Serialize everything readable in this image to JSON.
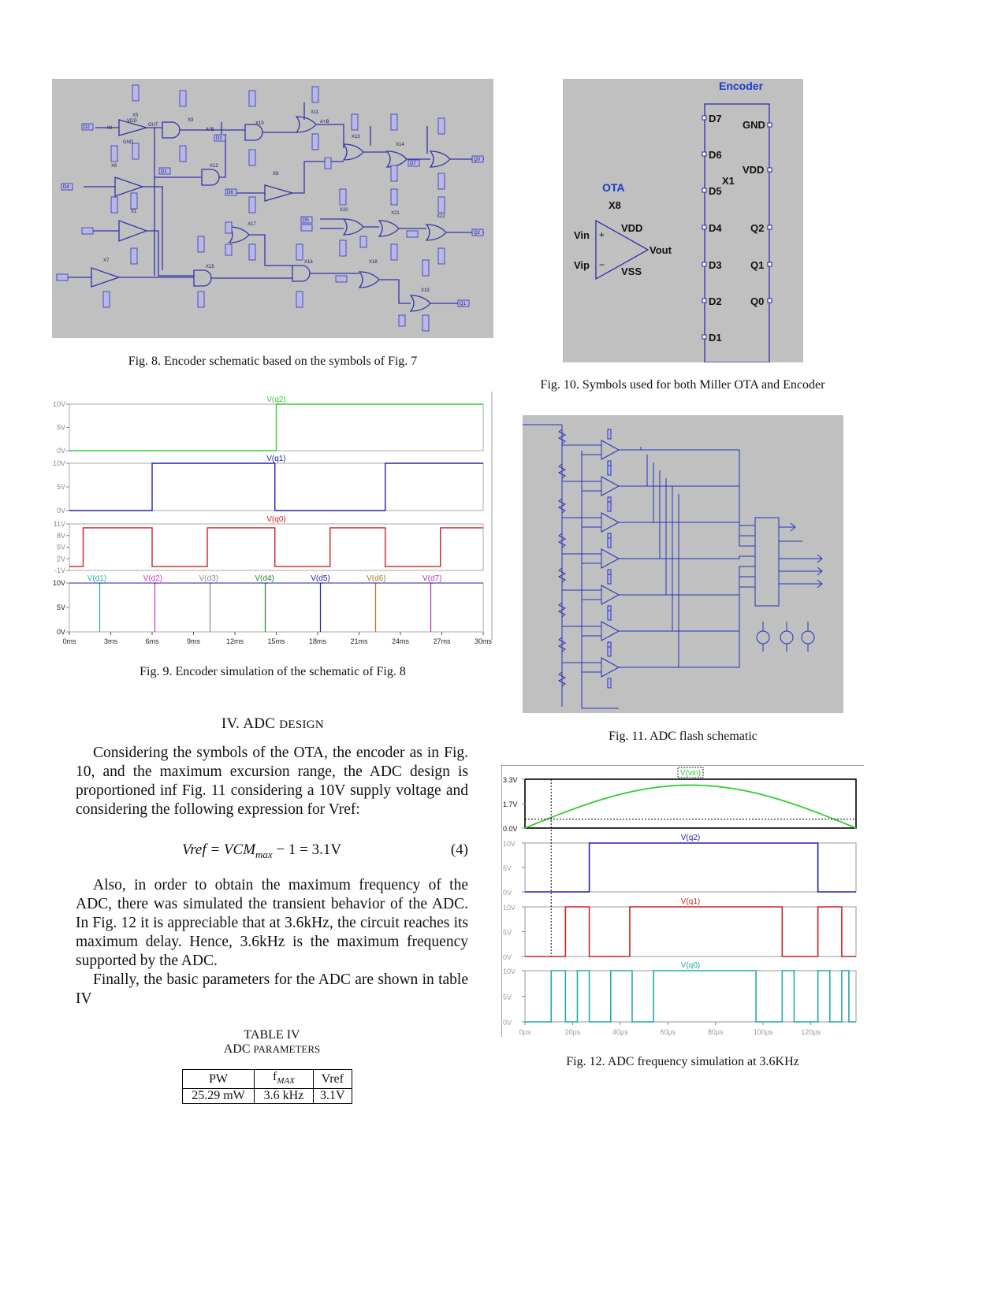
{
  "figures": {
    "fig8": {
      "caption": "Fig. 8.  Encoder schematic based on the symbols of Fig. 7",
      "labels": [
        "VDD",
        "GND",
        "X5",
        "X9",
        "X10",
        "X11",
        "X13",
        "X14",
        "X6",
        "X12",
        "X8",
        "X1",
        "X17",
        "X20",
        "X21",
        "X22",
        "X7",
        "X15",
        "X16",
        "X18",
        "X19",
        "D2",
        "D4",
        "D1",
        "D3",
        "D5",
        "D6",
        "D7",
        "Q0",
        "Q1",
        "Q2",
        "IN",
        "OUT",
        "A+B",
        "A*B"
      ]
    },
    "fig9": {
      "caption": "Fig. 9.  Encoder simulation of the schematic of Fig. 8"
    },
    "fig10": {
      "caption": "Fig. 10.  Symbols used for both Miller OTA and Encoder",
      "encoder_title": "Encoder",
      "encoder_ref": "X1",
      "encoder_inputs": [
        "D7",
        "D6",
        "D5",
        "D4",
        "D3",
        "D2",
        "D1"
      ],
      "encoder_outputs": [
        "GND",
        "VDD",
        "Q2",
        "Q1",
        "Q0"
      ],
      "ota_title": "OTA",
      "ota_ref": "X8",
      "ota_pins": {
        "vin": "Vin",
        "vip": "Vip",
        "vdd": "VDD",
        "vss": "VSS",
        "vout": "Vout",
        "plus": "+",
        "minus": "−"
      }
    },
    "fig11": {
      "caption": "Fig. 11.  ADC flash schematic"
    },
    "fig12": {
      "caption": "Fig. 12.  ADC frequency simulation at 3.6KHz"
    }
  },
  "section": {
    "number": "IV.",
    "title_first": "ADC ",
    "title_sc": "DESIGN",
    "para1": "Considering the symbols of the OTA, the encoder as in Fig. 10, and the maximum excursion range, the ADC design is proportioned inf Fig. 11 considering a 10V supply voltage and considering the following expression for Vref:",
    "equation": "Vref = VCM",
    "equation_sub": "max",
    "equation_rest": " − 1 = 3.1V",
    "equation_number": "(4)",
    "para2": "Also, in order to obtain the maximum frequency of the ADC, there was simulated the transient behavior of the ADC. In Fig. 12 it is appreciable that at 3.6kHz, the circuit reaches its maximum delay. Hence, 3.6kHz is the maximum frequency supported by the ADC.",
    "para3": "Finally, the basic parameters for the ADC are shown in table IV"
  },
  "table": {
    "title": "TABLE IV",
    "subtitle_first": "ADC ",
    "subtitle_sc": "PARAMETERS",
    "headers": [
      "PW",
      "f",
      "Vref"
    ],
    "header_sub": "MAX",
    "row": [
      "25.29 mW",
      "3.6 kHz",
      "3.1V"
    ]
  },
  "chart_data": [
    {
      "type": "line",
      "title": "",
      "x_unit": "ms",
      "xlim": [
        0,
        30
      ],
      "x_ticks": [
        "0ms",
        "3ms",
        "6ms",
        "9ms",
        "12ms",
        "15ms",
        "18ms",
        "21ms",
        "24ms",
        "27ms",
        "30ms"
      ],
      "panels": [
        {
          "name": "V(q2)",
          "color": "#33cc33",
          "y_ticks": [
            "10V",
            "5V",
            "0V"
          ],
          "ylim": [
            0,
            10
          ],
          "x": [
            0,
            15,
            15,
            30
          ],
          "y": [
            0,
            0,
            10,
            10
          ]
        },
        {
          "name": "V(q1)",
          "color": "#2222aa",
          "y_ticks": [
            "10V",
            "5V",
            "0V"
          ],
          "ylim": [
            0,
            10
          ],
          "x": [
            0,
            6,
            6,
            14.9,
            14.9,
            22.9,
            22.9,
            30
          ],
          "y": [
            0,
            0,
            10,
            10,
            0,
            0,
            10,
            10
          ]
        },
        {
          "name": "V(q0)",
          "color": "#cc2222",
          "y_ticks": [
            "11V",
            "8V",
            "5V",
            "2V",
            "-1V"
          ],
          "ylim": [
            -1,
            11
          ],
          "x": [
            0,
            1,
            1,
            6,
            6,
            10,
            10,
            14.9,
            14.9,
            18.9,
            18.9,
            22.9,
            22.9,
            26.9,
            26.9,
            30
          ],
          "y": [
            0,
            0,
            10,
            10,
            0,
            0,
            10,
            10,
            0,
            0,
            10,
            10,
            0,
            0,
            10,
            10
          ]
        },
        {
          "name": "V(d1..d7)",
          "y_ticks": [
            "10V",
            "5V",
            "0V"
          ],
          "ylim": [
            0,
            10
          ],
          "series": [
            {
              "name": "V(d1)",
              "color": "#22aaaa",
              "edge_ms": 2.2
            },
            {
              "name": "V(d2)",
              "color": "#cc33cc",
              "edge_ms": 6.2
            },
            {
              "name": "V(d3)",
              "color": "#888888",
              "edge_ms": 10.2
            },
            {
              "name": "V(d4)",
              "color": "#228822",
              "edge_ms": 14.2
            },
            {
              "name": "V(d5)",
              "color": "#2222aa",
              "edge_ms": 18.2
            },
            {
              "name": "V(d6)",
              "color": "#aa7722",
              "edge_ms": 22.2
            },
            {
              "name": "V(d7)",
              "color": "#aa33aa",
              "edge_ms": 26.2
            }
          ]
        }
      ]
    },
    {
      "type": "line",
      "title": "",
      "x_unit": "µs",
      "xlim": [
        0,
        139
      ],
      "x_ticks": [
        "0µs",
        "20µs",
        "40µs",
        "60µs",
        "80µs",
        "100µs",
        "120µs"
      ],
      "panels": [
        {
          "name": "V(vin)",
          "color": "#33cc33",
          "y_ticks": [
            "3.3V",
            "1.7V",
            "0.0V"
          ],
          "ylim": [
            0,
            3.3
          ],
          "shape": "half-sine",
          "peak": 2.9
        },
        {
          "name": "V(q2)",
          "color": "#2222aa",
          "y_ticks": [
            "10V",
            "5V",
            "0V"
          ],
          "ylim": [
            0,
            10
          ],
          "x": [
            0,
            27,
            27,
            123,
            123,
            139
          ],
          "y": [
            0,
            0,
            10,
            10,
            0,
            0
          ]
        },
        {
          "name": "V(q1)",
          "color": "#cc2222",
          "y_ticks": [
            "10V",
            "5V",
            "0V"
          ],
          "ylim": [
            0,
            10
          ],
          "x": [
            0,
            17,
            17,
            27,
            27,
            44,
            44,
            108,
            108,
            123,
            123,
            133,
            133,
            139
          ],
          "y": [
            0,
            0,
            10,
            10,
            0,
            0,
            10,
            10,
            0,
            0,
            10,
            10,
            0,
            0
          ]
        },
        {
          "name": "V(q0)",
          "color": "#22aaaa",
          "y_ticks": [
            "10V",
            "5V",
            "0V"
          ],
          "ylim": [
            0,
            10
          ],
          "edges_us": [
            11,
            17,
            22,
            27,
            36,
            45,
            54,
            97,
            108,
            113,
            123,
            128,
            133,
            136
          ]
        }
      ]
    }
  ]
}
